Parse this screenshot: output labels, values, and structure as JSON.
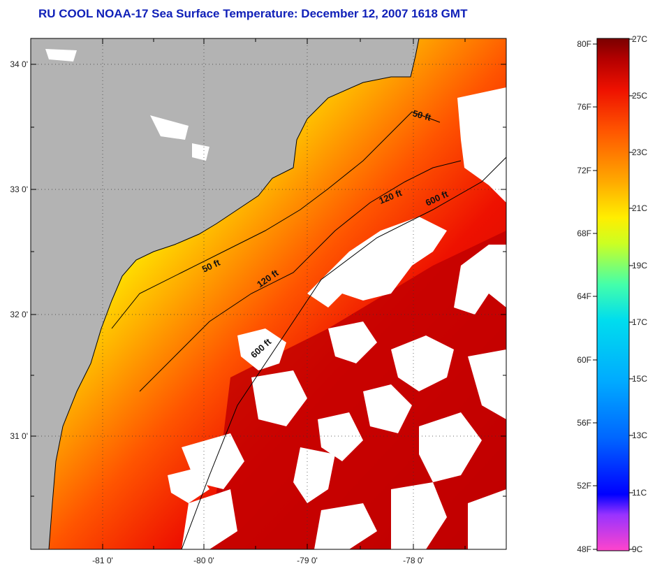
{
  "title": "RU COOL  NOAA-17  Sea Surface Temperature:  December 12, 2007 1618 GMT",
  "map": {
    "lat_labels": [
      "34 0'",
      "33 0'",
      "32 0'",
      "31 0'"
    ],
    "lon_labels": [
      "-81 0'",
      "-80 0'",
      "-79 0'",
      "-78 0'"
    ],
    "contours": [
      "50 ft",
      "120 ft",
      "600 ft",
      "50 ft",
      "120 ft",
      "600 ft"
    ],
    "colors": {
      "land": "#b3b3b3",
      "cloud": "#ffffff",
      "coast": "#000000"
    }
  },
  "colorbar": {
    "f_labels": [
      "80F",
      "76F",
      "72F",
      "68F",
      "64F",
      "60F",
      "56F",
      "52F",
      "48F"
    ],
    "c_labels": [
      "27C",
      "25C",
      "23C",
      "21C",
      "19C",
      "17C",
      "15C",
      "13C",
      "11C",
      "9C"
    ],
    "stops": [
      "#ff44cc",
      "#9933ff",
      "#0000ff",
      "#0066ff",
      "#00aaff",
      "#00ddee",
      "#44ffaa",
      "#ccff22",
      "#ffee00",
      "#ffaa00",
      "#ff5500",
      "#ee1100",
      "#b30000",
      "#7a0000"
    ]
  }
}
